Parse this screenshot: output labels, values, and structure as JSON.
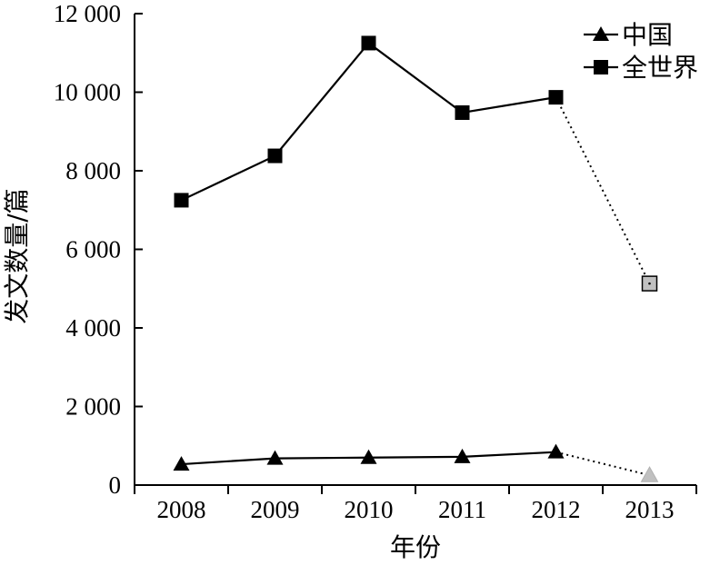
{
  "chart_data": {
    "type": "line",
    "categories": [
      "2008",
      "2009",
      "2010",
      "2011",
      "2012",
      "2013"
    ],
    "xlabel": "年份",
    "ylabel": "发文数量/篇",
    "ylim": [
      0,
      12000
    ],
    "yticks": [
      0,
      2000,
      4000,
      6000,
      8000,
      10000,
      12000
    ],
    "ytick_labels": [
      "0",
      "2 000",
      "4 000",
      "6 000",
      "8 000",
      "10 000",
      "12 000"
    ],
    "grid": false,
    "legend_position": "top-right",
    "series": [
      {
        "name": "中国",
        "marker": "triangle",
        "values": [
          530,
          680,
          700,
          720,
          840,
          250
        ],
        "estimated_last_point": true,
        "color": "#000000",
        "projected_color": "#c0c0c0"
      },
      {
        "name": "全世界",
        "marker": "square",
        "values": [
          7250,
          8380,
          11250,
          9480,
          9870,
          5130
        ],
        "estimated_last_point": true,
        "color": "#000000",
        "projected_color": "#c0c0c0"
      }
    ]
  }
}
